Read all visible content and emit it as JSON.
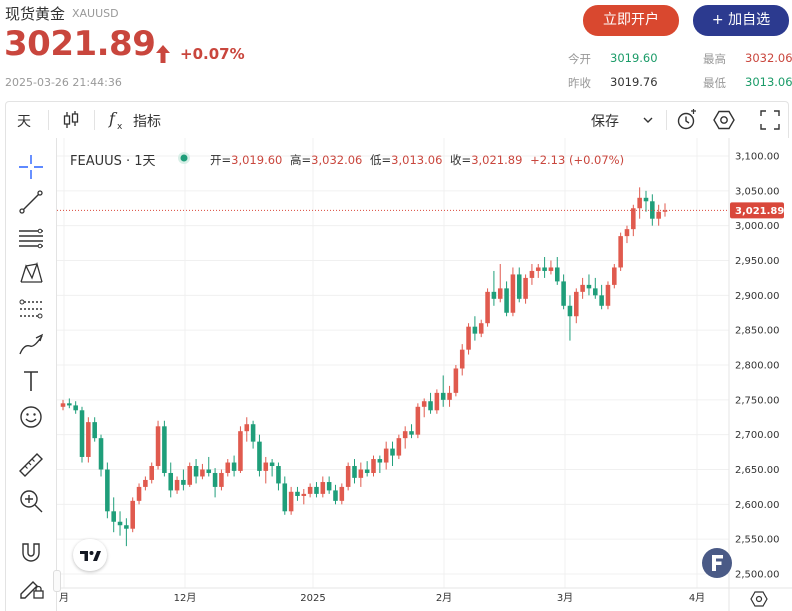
{
  "header": {
    "title": "现货黄金",
    "ticker": "XAUUSD",
    "price": "3021.89",
    "change": "+0.07%",
    "timestamp": "2025-03-26 21:44:36",
    "open_account_label": "立即开户",
    "add_watch_label": "+ 加自选",
    "stats": {
      "open_label": "今开",
      "open_value": "3019.60",
      "high_label": "最高",
      "high_value": "3032.06",
      "prev_close_label": "昨收",
      "prev_close_value": "3019.76",
      "low_label": "最低",
      "low_value": "3013.06"
    }
  },
  "toolbar": {
    "interval": "天",
    "indicators_label": "指标",
    "save_label": "保存"
  },
  "legend": {
    "symbol": "FEAUUS · 1天",
    "open_label": "开=",
    "open_value": "3,019.60",
    "high_label": "高=",
    "high_value": "3,032.06",
    "low_label": "低=",
    "low_value": "3,013.06",
    "close_label": "收=",
    "close_value": "3,021.89",
    "change": "+2.13 (+0.07%)"
  },
  "colors": {
    "up": "#e05a4e",
    "down": "#1f9e7a",
    "price_tag": "#d9483b"
  },
  "chart_data": {
    "type": "candlestick",
    "y_ticks": [
      "3,100.00",
      "3,050.00",
      "3,000.00",
      "2,950.00",
      "2,900.00",
      "2,850.00",
      "2,800.00",
      "2,750.00",
      "2,700.00",
      "2,650.00",
      "2,600.00",
      "2,550.00",
      "2,500.00"
    ],
    "ylim": [
      2500,
      3100
    ],
    "x_ticks": [
      "月",
      "12月",
      "2025",
      "2月",
      "3月",
      "4月"
    ],
    "last_price_label": "3,021.89",
    "last_price": 3021.89,
    "grid": true,
    "candles": [
      [
        2740,
        2750,
        2735,
        2745
      ],
      [
        2745,
        2752,
        2738,
        2742
      ],
      [
        2742,
        2748,
        2730,
        2735
      ],
      [
        2735,
        2740,
        2660,
        2668
      ],
      [
        2668,
        2725,
        2660,
        2718
      ],
      [
        2718,
        2725,
        2690,
        2695
      ],
      [
        2695,
        2700,
        2640,
        2650
      ],
      [
        2650,
        2660,
        2580,
        2590
      ],
      [
        2590,
        2610,
        2560,
        2575
      ],
      [
        2575,
        2590,
        2555,
        2570
      ],
      [
        2570,
        2580,
        2540,
        2565
      ],
      [
        2565,
        2610,
        2560,
        2605
      ],
      [
        2605,
        2630,
        2600,
        2625
      ],
      [
        2625,
        2640,
        2620,
        2635
      ],
      [
        2635,
        2660,
        2630,
        2655
      ],
      [
        2655,
        2720,
        2650,
        2712
      ],
      [
        2712,
        2720,
        2640,
        2645
      ],
      [
        2645,
        2660,
        2610,
        2620
      ],
      [
        2620,
        2640,
        2615,
        2635
      ],
      [
        2635,
        2650,
        2620,
        2628
      ],
      [
        2628,
        2660,
        2625,
        2655
      ],
      [
        2655,
        2665,
        2630,
        2640
      ],
      [
        2640,
        2658,
        2636,
        2650
      ],
      [
        2650,
        2668,
        2640,
        2645
      ],
      [
        2645,
        2652,
        2610,
        2625
      ],
      [
        2625,
        2650,
        2620,
        2645
      ],
      [
        2645,
        2665,
        2640,
        2660
      ],
      [
        2660,
        2670,
        2640,
        2648
      ],
      [
        2648,
        2712,
        2645,
        2705
      ],
      [
        2705,
        2725,
        2690,
        2715
      ],
      [
        2715,
        2720,
        2680,
        2690
      ],
      [
        2690,
        2700,
        2640,
        2648
      ],
      [
        2648,
        2668,
        2630,
        2660
      ],
      [
        2660,
        2665,
        2640,
        2655
      ],
      [
        2655,
        2660,
        2620,
        2630
      ],
      [
        2630,
        2640,
        2585,
        2590
      ],
      [
        2590,
        2625,
        2585,
        2618
      ],
      [
        2618,
        2625,
        2605,
        2612
      ],
      [
        2612,
        2622,
        2600,
        2615
      ],
      [
        2615,
        2630,
        2610,
        2625
      ],
      [
        2625,
        2632,
        2610,
        2615
      ],
      [
        2615,
        2640,
        2610,
        2632
      ],
      [
        2632,
        2640,
        2615,
        2620
      ],
      [
        2620,
        2628,
        2600,
        2605
      ],
      [
        2605,
        2630,
        2600,
        2625
      ],
      [
        2625,
        2660,
        2620,
        2655
      ],
      [
        2655,
        2665,
        2630,
        2638
      ],
      [
        2638,
        2660,
        2625,
        2650
      ],
      [
        2650,
        2662,
        2640,
        2645
      ],
      [
        2645,
        2670,
        2640,
        2665
      ],
      [
        2665,
        2670,
        2645,
        2660
      ],
      [
        2660,
        2690,
        2650,
        2680
      ],
      [
        2680,
        2690,
        2655,
        2670
      ],
      [
        2670,
        2700,
        2665,
        2695
      ],
      [
        2695,
        2712,
        2680,
        2705
      ],
      [
        2705,
        2715,
        2695,
        2700
      ],
      [
        2700,
        2745,
        2695,
        2740
      ],
      [
        2740,
        2752,
        2725,
        2748
      ],
      [
        2748,
        2760,
        2730,
        2735
      ],
      [
        2735,
        2765,
        2730,
        2760
      ],
      [
        2760,
        2785,
        2740,
        2750
      ],
      [
        2750,
        2770,
        2740,
        2760
      ],
      [
        2760,
        2800,
        2755,
        2795
      ],
      [
        2795,
        2830,
        2785,
        2822
      ],
      [
        2822,
        2860,
        2815,
        2855
      ],
      [
        2855,
        2870,
        2835,
        2845
      ],
      [
        2845,
        2865,
        2840,
        2860
      ],
      [
        2860,
        2910,
        2855,
        2905
      ],
      [
        2905,
        2935,
        2885,
        2895
      ],
      [
        2895,
        2945,
        2890,
        2910
      ],
      [
        2910,
        2920,
        2870,
        2875
      ],
      [
        2875,
        2940,
        2870,
        2930
      ],
      [
        2930,
        2940,
        2890,
        2895
      ],
      [
        2895,
        2930,
        2888,
        2925
      ],
      [
        2925,
        2945,
        2915,
        2935
      ],
      [
        2935,
        2945,
        2925,
        2940
      ],
      [
        2940,
        2955,
        2925,
        2935
      ],
      [
        2935,
        2950,
        2930,
        2940
      ],
      [
        2940,
        2955,
        2915,
        2920
      ],
      [
        2920,
        2930,
        2880,
        2885
      ],
      [
        2885,
        2900,
        2835,
        2870
      ],
      [
        2870,
        2910,
        2860,
        2905
      ],
      [
        2905,
        2925,
        2895,
        2915
      ],
      [
        2915,
        2930,
        2900,
        2910
      ],
      [
        2910,
        2925,
        2895,
        2900
      ],
      [
        2900,
        2915,
        2880,
        2885
      ],
      [
        2885,
        2920,
        2880,
        2915
      ],
      [
        2915,
        2945,
        2910,
        2940
      ],
      [
        2940,
        2990,
        2935,
        2985
      ],
      [
        2985,
        3000,
        2975,
        2995
      ],
      [
        2995,
        3030,
        2985,
        3025
      ],
      [
        3025,
        3055,
        3010,
        3040
      ],
      [
        3040,
        3050,
        3020,
        3035
      ],
      [
        3035,
        3045,
        3000,
        3010
      ],
      [
        3010,
        3030,
        3000,
        3020
      ],
      [
        3020,
        3032,
        3013,
        3022
      ]
    ]
  }
}
